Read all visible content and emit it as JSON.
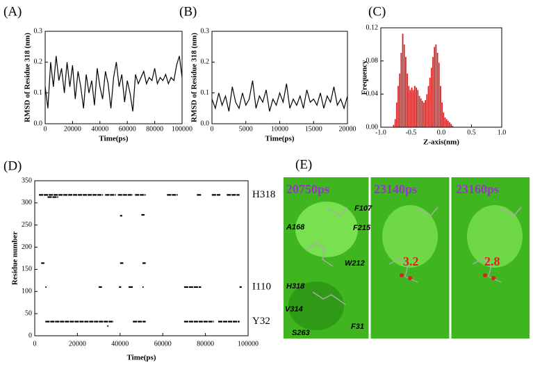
{
  "chart_data": [
    {
      "type": "line",
      "panel_label": "(A)",
      "xlabel": "Time(ps)",
      "ylabel": "RMSD of Residue 318 (nm)",
      "color": "#000000",
      "x": [
        0,
        2000,
        4000,
        6000,
        8000,
        10000,
        12000,
        14000,
        16000,
        18000,
        20000,
        22000,
        24000,
        26000,
        28000,
        30000,
        32000,
        34000,
        36000,
        38000,
        40000,
        42000,
        44000,
        46000,
        48000,
        50000,
        52000,
        54000,
        56000,
        58000,
        60000,
        62000,
        64000,
        66000,
        68000,
        70000,
        72000,
        74000,
        76000,
        78000,
        80000,
        82000,
        84000,
        86000,
        88000,
        90000,
        92000,
        94000,
        96000,
        98000,
        100000
      ],
      "values": [
        0.12,
        0.05,
        0.2,
        0.12,
        0.22,
        0.14,
        0.18,
        0.1,
        0.2,
        0.12,
        0.19,
        0.08,
        0.17,
        0.12,
        0.05,
        0.16,
        0.1,
        0.14,
        0.06,
        0.18,
        0.12,
        0.08,
        0.17,
        0.13,
        0.05,
        0.15,
        0.2,
        0.12,
        0.16,
        0.07,
        0.14,
        0.1,
        0.04,
        0.16,
        0.13,
        0.15,
        0.17,
        0.13,
        0.15,
        0.14,
        0.18,
        0.13,
        0.15,
        0.14,
        0.16,
        0.13,
        0.15,
        0.14,
        0.19,
        0.22,
        0.15
      ],
      "xlim": [
        0,
        100000
      ],
      "xticks": [
        0,
        20000,
        40000,
        60000,
        80000,
        100000
      ],
      "ylim": [
        0,
        0.3
      ],
      "yticks": [
        {
          "value": 0,
          "label": "0.0"
        },
        0.1,
        0.2,
        0.3
      ]
    },
    {
      "type": "line",
      "panel_label": "(B)",
      "xlabel": "Time(ps)",
      "ylabel": "RMSD of Residue 318 (nm)",
      "color": "#000000",
      "x": [
        0,
        500,
        1000,
        1500,
        2000,
        2500,
        3000,
        3500,
        4000,
        4500,
        5000,
        5500,
        6000,
        6500,
        7000,
        7500,
        8000,
        8500,
        9000,
        9500,
        10000,
        10500,
        11000,
        11500,
        12000,
        12500,
        13000,
        13500,
        14000,
        14500,
        15000,
        15500,
        16000,
        16500,
        17000,
        17500,
        18000,
        18500,
        19000,
        19500,
        20000
      ],
      "values": [
        0.08,
        0.05,
        0.1,
        0.06,
        0.09,
        0.04,
        0.12,
        0.07,
        0.05,
        0.1,
        0.06,
        0.08,
        0.14,
        0.05,
        0.09,
        0.07,
        0.11,
        0.04,
        0.08,
        0.06,
        0.1,
        0.07,
        0.13,
        0.05,
        0.08,
        0.06,
        0.09,
        0.05,
        0.11,
        0.07,
        0.08,
        0.06,
        0.1,
        0.05,
        0.09,
        0.07,
        0.12,
        0.06,
        0.08,
        0.05,
        0.09
      ],
      "xlim": [
        0,
        20000
      ],
      "xticks": [
        0,
        5000,
        10000,
        15000,
        20000
      ],
      "ylim": [
        0,
        0.3
      ],
      "yticks": [
        {
          "value": 0,
          "label": "0.0"
        },
        0.1,
        0.2,
        0.3
      ]
    },
    {
      "type": "histogram",
      "panel_label": "(C)",
      "xlabel": "Z-axis(nm)",
      "ylabel": "Frequency",
      "color": "#d42020",
      "bins": [
        -0.8,
        -0.775,
        -0.75,
        -0.725,
        -0.7,
        -0.675,
        -0.65,
        -0.625,
        -0.6,
        -0.575,
        -0.55,
        -0.525,
        -0.5,
        -0.475,
        -0.45,
        -0.425,
        -0.4,
        -0.375,
        -0.35,
        -0.325,
        -0.3,
        -0.275,
        -0.25,
        -0.225,
        -0.2,
        -0.175,
        -0.15,
        -0.125,
        -0.1,
        -0.075,
        -0.05,
        -0.025,
        0,
        0.025,
        0.05,
        0.075,
        0.1,
        0.125,
        0.15,
        0.175,
        0.2
      ],
      "values": [
        0.003,
        0.01,
        0.03,
        0.05,
        0.065,
        0.09,
        0.113,
        0.1,
        0.085,
        0.065,
        0.05,
        0.045,
        0.048,
        0.045,
        0.05,
        0.048,
        0.045,
        0.038,
        0.035,
        0.032,
        0.03,
        0.033,
        0.04,
        0.05,
        0.06,
        0.072,
        0.085,
        0.097,
        0.1,
        0.09,
        0.078,
        0.05,
        0.03,
        0.018,
        0.012,
        0.01,
        0.008,
        0.006,
        0.004,
        0.002
      ],
      "xlim": [
        -1,
        1
      ],
      "xticks": [
        {
          "value": -1,
          "label": "-1.0"
        },
        -0.5,
        {
          "value": 0,
          "label": "0.0"
        },
        0.5,
        {
          "value": 1,
          "label": "1.0"
        }
      ],
      "ylim": [
        0,
        0.12
      ],
      "yticks": [
        {
          "value": 0,
          "label": "0.00"
        },
        0.04,
        0.08,
        0.12
      ]
    },
    {
      "type": "segment",
      "panel_label": "(D)",
      "xlabel": "Time(ps)",
      "ylabel": "Residue number",
      "color": "#000000",
      "y": [
        318,
        318,
        318,
        318,
        318,
        318,
        318,
        318,
        313,
        271,
        273,
        164,
        164,
        164,
        110,
        110,
        110,
        110,
        110,
        110,
        110,
        32,
        32,
        32,
        32,
        22
      ],
      "x_start": [
        2000,
        33000,
        39000,
        47000,
        62000,
        76000,
        83000,
        90000,
        6000,
        40000,
        50000,
        3000,
        40000,
        50500,
        5000,
        30000,
        39500,
        44000,
        50500,
        70000,
        96000,
        5000,
        46000,
        70000,
        86000,
        34000
      ],
      "x_end": [
        32000,
        38000,
        46000,
        52000,
        67000,
        78000,
        87000,
        96000,
        11000,
        41000,
        51500,
        4500,
        41500,
        52000,
        5500,
        31500,
        40500,
        46000,
        51000,
        78000,
        97000,
        37000,
        52000,
        84000,
        96000,
        34500
      ],
      "xlim": [
        0,
        100000
      ],
      "xticks": [
        0,
        20000,
        40000,
        60000,
        80000,
        100000
      ],
      "ylim": [
        0,
        350
      ],
      "yticks": [
        0,
        50,
        100,
        150,
        200,
        250,
        300,
        350
      ],
      "annotations": [
        {
          "text": "H318",
          "y": 318
        },
        {
          "text": "I110",
          "y": 110
        },
        {
          "text": "Y32",
          "y": 32
        }
      ]
    }
  ],
  "panel_e": {
    "panel_label": "(E)",
    "frames": [
      "20750ps",
      "23140ps",
      "23160ps"
    ],
    "distances": [
      "3.2",
      "2.8"
    ],
    "residues": [
      "F107",
      "A168",
      "F215",
      "W212",
      "H318",
      "V314",
      "S263",
      "F31"
    ]
  }
}
